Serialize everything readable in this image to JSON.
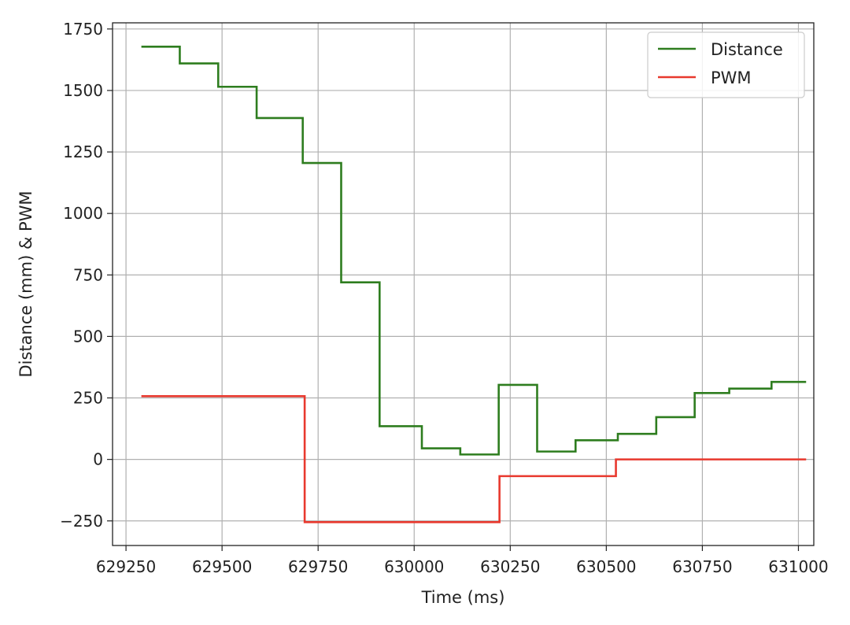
{
  "chart_data": {
    "type": "line",
    "title": "",
    "xlabel": "Time (ms)",
    "ylabel": "Distance (mm) & PWM",
    "xlim": [
      629215,
      631040
    ],
    "ylim": [
      -350,
      1775
    ],
    "xticks": [
      629250,
      629500,
      629750,
      630000,
      630250,
      630500,
      630750,
      631000
    ],
    "xtick_labels": [
      "629250",
      "629500",
      "629750",
      "630000",
      "630250",
      "630500",
      "630750",
      "631000"
    ],
    "yticks": [
      -250,
      0,
      250,
      500,
      750,
      1000,
      1250,
      1500,
      1750
    ],
    "ytick_labels": [
      "−250",
      "0",
      "250",
      "500",
      "750",
      "1000",
      "1250",
      "1500",
      "1750"
    ],
    "grid": true,
    "legend_position": "top-right",
    "series": [
      {
        "name": "Distance",
        "color": "#2e7d1f",
        "step": "post",
        "x": [
          629290,
          629390,
          629490,
          629590,
          629710,
          629810,
          629910,
          630020,
          630120,
          630220,
          630320,
          630420,
          630530,
          630630,
          630730,
          630820,
          630930,
          631020
        ],
        "y": [
          1678,
          1610,
          1515,
          1388,
          1205,
          720,
          135,
          45,
          20,
          303,
          32,
          78,
          104,
          172,
          270,
          288,
          315,
          315
        ]
      },
      {
        "name": "PWM",
        "color": "#e8392e",
        "step": "post",
        "x": [
          629290,
          629715,
          630222,
          630525,
          631020
        ],
        "y": [
          257,
          -255,
          -68,
          0,
          0
        ]
      }
    ]
  }
}
